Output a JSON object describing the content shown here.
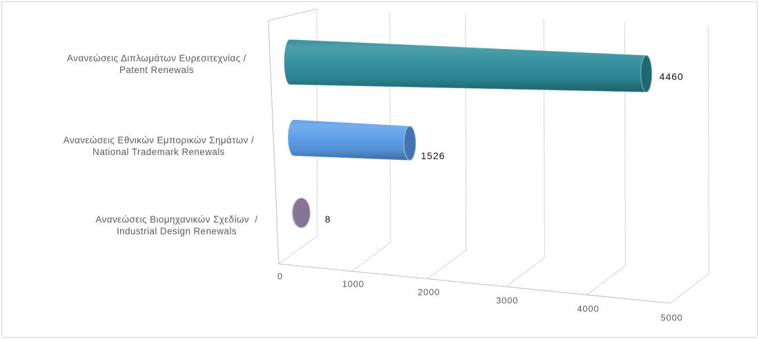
{
  "chart_data": {
    "type": "bar",
    "horizontal": true,
    "three_d": true,
    "categories": [
      "Ανανεώσεις Διπλωμάτων Ευρεσιτεχνίας /\nPatent Renewals",
      "Ανανεώσεις Εθνικών Εμπορικών Σημάτων /\nNational Trademark Renewals",
      "Ανανεώσεις Βιομηχανικών Σχεδίων  /\nIndustrial Design Renewals"
    ],
    "values": [
      4460,
      1526,
      8
    ],
    "xlim": [
      0,
      5000
    ],
    "ticks": [
      0,
      1000,
      2000,
      3000,
      4000,
      5000
    ],
    "grid": true,
    "colors": [
      "#2e8d9b",
      "#5a9de8",
      "#8a7a9c"
    ]
  }
}
